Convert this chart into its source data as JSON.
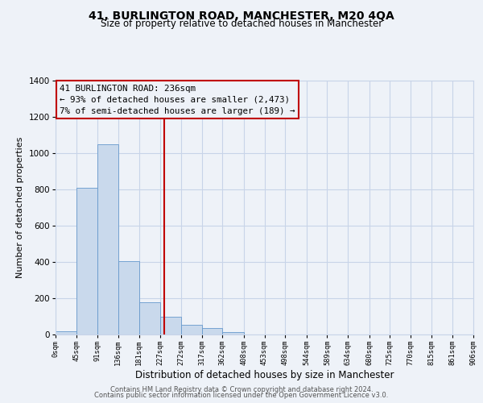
{
  "title": "41, BURLINGTON ROAD, MANCHESTER, M20 4QA",
  "subtitle": "Size of property relative to detached houses in Manchester",
  "xlabel": "Distribution of detached houses by size in Manchester",
  "ylabel": "Number of detached properties",
  "bar_edges": [
    0,
    45,
    91,
    136,
    181,
    227,
    272,
    317,
    362,
    408,
    453,
    498,
    544,
    589,
    634,
    680,
    725,
    770,
    815,
    861,
    906
  ],
  "bar_heights": [
    20,
    810,
    1050,
    405,
    180,
    100,
    55,
    35,
    15,
    0,
    0,
    0,
    0,
    0,
    0,
    0,
    0,
    0,
    0,
    0
  ],
  "bar_color": "#c9d9ec",
  "bar_edgecolor": "#6699cc",
  "property_value": 236,
  "vline_color": "#c00000",
  "annotation_box_edgecolor": "#c00000",
  "annotation_lines": [
    "41 BURLINGTON ROAD: 236sqm",
    "← 93% of detached houses are smaller (2,473)",
    "7% of semi-detached houses are larger (189) →"
  ],
  "ylim": [
    0,
    1400
  ],
  "yticks": [
    0,
    200,
    400,
    600,
    800,
    1000,
    1200,
    1400
  ],
  "tick_labels": [
    "0sqm",
    "45sqm",
    "91sqm",
    "136sqm",
    "181sqm",
    "227sqm",
    "272sqm",
    "317sqm",
    "362sqm",
    "408sqm",
    "453sqm",
    "498sqm",
    "544sqm",
    "589sqm",
    "634sqm",
    "680sqm",
    "725sqm",
    "770sqm",
    "815sqm",
    "861sqm",
    "906sqm"
  ],
  "footer_line1": "Contains HM Land Registry data © Crown copyright and database right 2024.",
  "footer_line2": "Contains public sector information licensed under the Open Government Licence v3.0.",
  "grid_color": "#c8d4e8",
  "background_color": "#eef2f8",
  "title_fontsize": 10,
  "subtitle_fontsize": 8.5,
  "footer_fontsize": 6.0,
  "ylabel_fontsize": 8,
  "xlabel_fontsize": 8.5
}
